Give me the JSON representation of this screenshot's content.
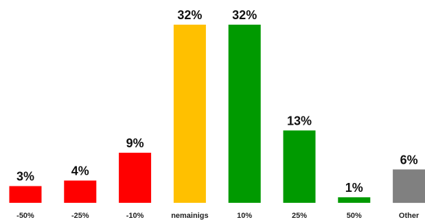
{
  "chart_data": {
    "type": "bar",
    "title": "",
    "xlabel": "",
    "ylabel": "",
    "ylim": [
      0,
      32
    ],
    "grid": false,
    "legend": "none",
    "categories": [
      "-50%",
      "-25%",
      "-10%",
      "nemainigs",
      "10%",
      "25%",
      "50%",
      "Other"
    ],
    "values": [
      3,
      4,
      9,
      32,
      32,
      13,
      1,
      6
    ],
    "value_labels": [
      "3%",
      "4%",
      "9%",
      "32%",
      "32%",
      "13%",
      "1%",
      "6%"
    ],
    "colors": [
      "#ff0000",
      "#ff0000",
      "#ff0000",
      "#ffc000",
      "#009a00",
      "#009a00",
      "#009a00",
      "#808080"
    ]
  }
}
